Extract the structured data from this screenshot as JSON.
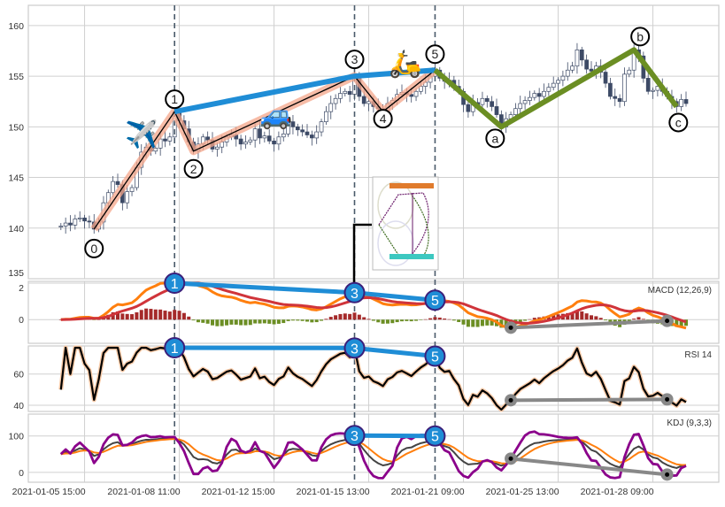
{
  "chart_data": {
    "type": "candlestick",
    "x_tick_labels": [
      "2021-01-05 15:00",
      "2021-01-08 11:00",
      "2021-01-12 15:00",
      "2021-01-15 13:00",
      "2021-01-21 09:00",
      "2021-01-25 13:00",
      "2021-01-28 09:00"
    ],
    "x_tick_bar_index": [
      5,
      25,
      45,
      65,
      85,
      105,
      125
    ],
    "close": [
      140.2,
      140.5,
      140.3,
      140.9,
      141.0,
      140.7,
      140.6,
      139.9,
      140.6,
      142.5,
      143.5,
      144.6,
      144.3,
      142.5,
      143.6,
      144.0,
      146.0,
      147.5,
      148.0,
      147.6,
      147.9,
      148.8,
      148.6,
      149.0,
      151.5,
      150.6,
      149.8,
      148.5,
      147.6,
      148.3,
      149.0,
      148.7,
      147.8,
      148.0,
      148.5,
      149.0,
      149.2,
      148.8,
      148.3,
      148.5,
      148.7,
      149.8,
      148.9,
      149.1,
      148.6,
      148.3,
      149.0,
      149.3,
      150.5,
      150.0,
      149.7,
      149.5,
      149.2,
      148.9,
      149.5,
      150.5,
      151.5,
      152.3,
      152.8,
      153.3,
      153.5,
      153.2,
      155.0,
      153.0,
      152.3,
      152.5,
      152.0,
      151.8,
      151.5,
      152.3,
      152.6,
      153.2,
      153.4,
      153.2,
      153.0,
      153.5,
      154.0,
      154.4,
      155.0,
      155.6,
      154.8,
      154.5,
      154.6,
      154.0,
      153.5,
      152.2,
      151.5,
      152.4,
      152.2,
      152.8,
      152.5,
      152.0,
      151.2,
      150.0,
      150.8,
      151.2,
      151.8,
      152.3,
      152.6,
      152.9,
      153.3,
      153.0,
      153.5,
      153.9,
      154.3,
      154.6,
      155.0,
      155.6,
      156.0,
      157.6,
      156.6,
      155.7,
      155.5,
      156.0,
      155.4,
      154.3,
      153.0,
      152.8,
      152.5,
      155.2,
      155.6,
      157.6,
      157.0,
      154.8,
      153.5,
      153.6,
      154.0,
      153.5,
      153.0,
      152.5,
      152.0,
      152.7,
      152.3
    ],
    "price_axis": {
      "ylim": [
        135,
        162
      ],
      "ticks": [
        135,
        140,
        145,
        150,
        155,
        160
      ]
    },
    "waves": {
      "impulse": [
        {
          "label": "0",
          "bar": 7,
          "price": 139.9
        },
        {
          "label": "1",
          "bar": 24,
          "price": 151.5
        },
        {
          "label": "2",
          "bar": 28,
          "price": 147.6
        },
        {
          "label": "3",
          "bar": 62,
          "price": 155.0
        },
        {
          "label": "4",
          "bar": 68,
          "price": 151.5
        },
        {
          "label": "5",
          "bar": 79,
          "price": 155.6
        }
      ],
      "correction": [
        {
          "label": "a",
          "bar": 93,
          "price": 150.0
        },
        {
          "label": "b",
          "bar": 121,
          "price": 157.6
        },
        {
          "label": "c",
          "bar": 130,
          "price": 152.0
        }
      ],
      "trend_line_points": [
        "1",
        "3",
        "5"
      ]
    },
    "markers": [
      {
        "emoji": "✈️",
        "name": "airplane"
      },
      {
        "emoji": "🚙",
        "name": "car"
      },
      {
        "emoji": "🛵",
        "name": "scooter"
      }
    ],
    "vertical_marker_bars": [
      24,
      62,
      79
    ],
    "indicators": [
      {
        "label": "MACD (12,26,9)",
        "ticks": [
          0,
          2
        ],
        "ylim": [
          -1.3,
          2.1
        ],
        "divergence_labels": [
          "1",
          "3",
          "5"
        ]
      },
      {
        "label": "RSI 14",
        "ticks": [
          40,
          60
        ],
        "ylim": [
          36,
          78
        ],
        "divergence_labels": [
          "1",
          "3",
          "5"
        ]
      },
      {
        "label": "KDJ (9,3,3)",
        "ticks": [
          0,
          100
        ],
        "ylim": [
          -27,
          160
        ],
        "divergence_labels": [
          "3",
          "5"
        ]
      }
    ],
    "colors": {
      "impulse_trend": "#1f8dd6",
      "correction": "#6b8e23",
      "wave_band": "#f4a58a",
      "up_candle": "#ffffff",
      "down_candle": "#3d4a66",
      "dif": "#ff7f0e",
      "dea": "#d0343a",
      "hist_pos": "#a52a2a",
      "hist_neg": "#6b8e23",
      "k": "#444444",
      "d": "#ff7f0e",
      "j": "#8b008b",
      "divergence_gray": "#888888"
    },
    "grid": true
  }
}
